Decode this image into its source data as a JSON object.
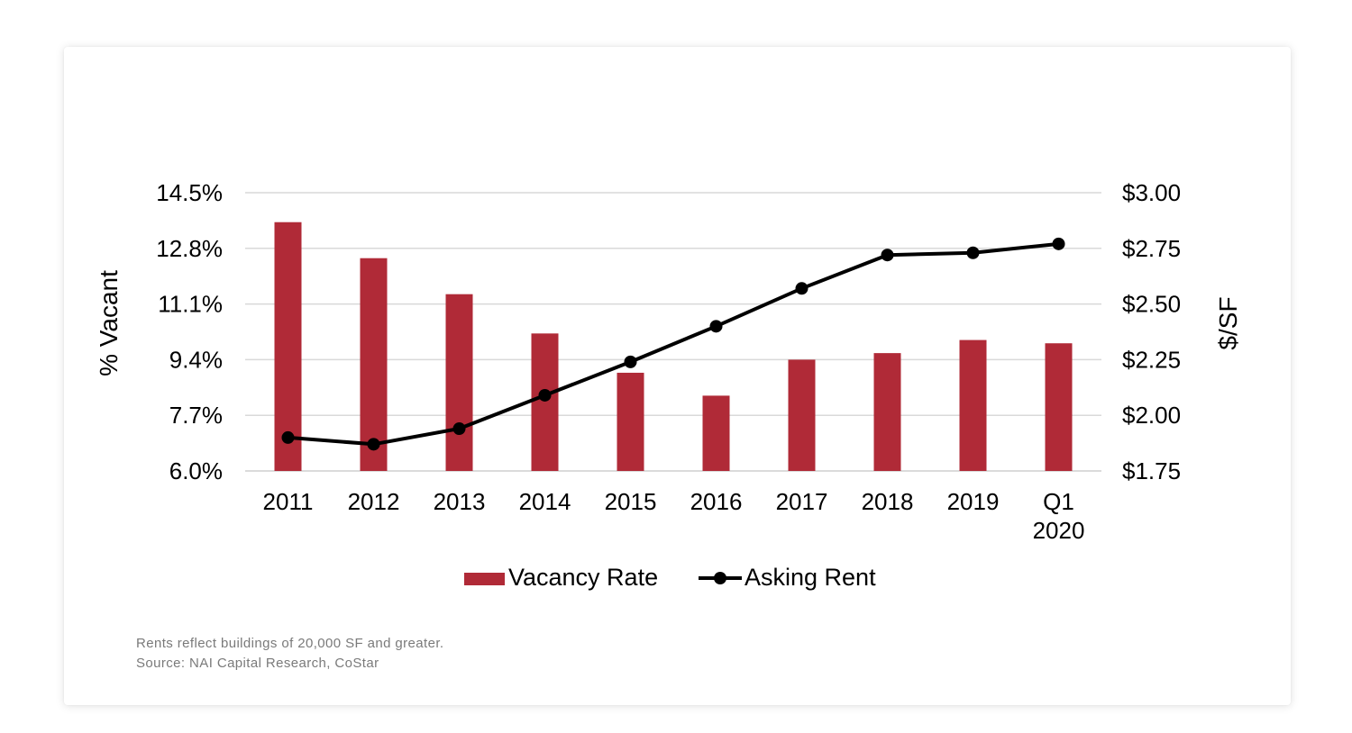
{
  "chart_data": {
    "type": "bar",
    "categories": [
      "2011",
      "2012",
      "2013",
      "2014",
      "2015",
      "2016",
      "2017",
      "2018",
      "2019",
      "Q1 2020"
    ],
    "category_lines": [
      [
        "2011"
      ],
      [
        "2012"
      ],
      [
        "2013"
      ],
      [
        "2014"
      ],
      [
        "2015"
      ],
      [
        "2016"
      ],
      [
        "2017"
      ],
      [
        "2018"
      ],
      [
        "2019"
      ],
      [
        "Q1",
        "2020"
      ]
    ],
    "series": [
      {
        "name": "Vacancy Rate",
        "type": "bar",
        "axis": "left",
        "color": "#b02a37",
        "values": [
          13.6,
          12.5,
          11.4,
          10.2,
          9.0,
          8.3,
          9.4,
          9.6,
          10.0,
          9.9
        ]
      },
      {
        "name": "Asking Rent",
        "type": "line",
        "axis": "right",
        "color": "#000000",
        "values": [
          1.9,
          1.87,
          1.94,
          2.09,
          2.24,
          2.4,
          2.57,
          2.72,
          2.73,
          2.77
        ]
      }
    ],
    "ylabel": "% Vacant",
    "y2label": "$/SF",
    "ylim": [
      6.0,
      14.5
    ],
    "y2lim": [
      1.75,
      3.0
    ],
    "yticks": [
      "14.5%",
      "12.8%",
      "11.1%",
      "9.4%",
      "7.7%",
      "6.0%"
    ],
    "y2ticks": [
      "$3.00",
      "$2.75",
      "$2.50",
      "$2.25",
      "$2.00",
      "$1.75"
    ],
    "grid": true,
    "legend_position": "bottom-center"
  },
  "notes": {
    "line1": "Rents reflect buildings of 20,000 SF and greater.",
    "line2": "Source: NAI Capital Research, CoStar"
  }
}
